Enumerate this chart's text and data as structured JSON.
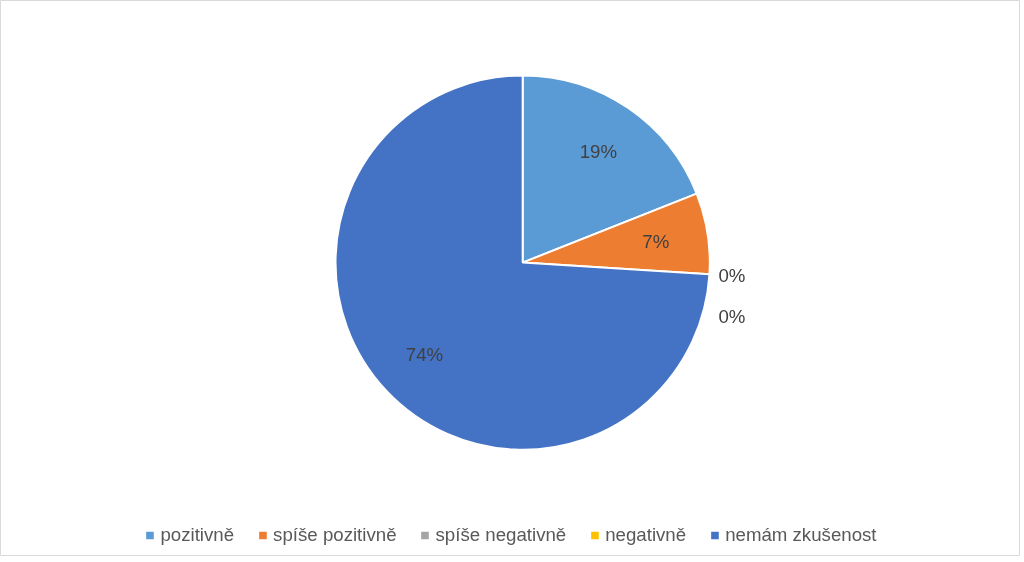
{
  "chart_data": {
    "type": "pie",
    "categories": [
      "pozitivně",
      "spíše pozitivně",
      "spíše negativně",
      "negativně",
      "nemám zkušenost"
    ],
    "values": [
      19,
      7,
      0,
      0,
      74
    ],
    "colors": [
      "#5b9bd5",
      "#ed7d31",
      "#a5a5a5",
      "#ffc000",
      "#4472c4"
    ],
    "value_labels": [
      "19%",
      "7%",
      "0%",
      "0%",
      "74%"
    ],
    "legend": "bottom"
  }
}
